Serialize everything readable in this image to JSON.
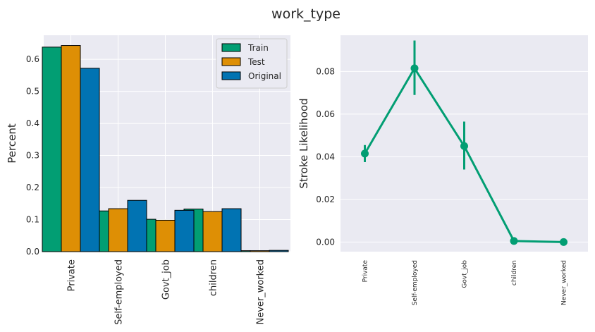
{
  "figure": {
    "title": "work_type"
  },
  "colors": {
    "train": "#029e73",
    "test": "#de8f05",
    "original": "#0173b2",
    "line": "#029e73",
    "panel_bg": "#eaeaf2",
    "grid": "#ffffff"
  },
  "chart_data": [
    {
      "type": "bar",
      "title": "",
      "xlabel": "",
      "ylabel": "Percent",
      "ylim": [
        0,
        0.675
      ],
      "yticks": [
        0.0,
        0.1,
        0.2,
        0.3,
        0.4,
        0.5,
        0.6
      ],
      "ytick_labels": [
        "0.0",
        "0.1",
        "0.2",
        "0.3",
        "0.4",
        "0.5",
        "0.6"
      ],
      "grid": true,
      "legend": "top-right",
      "categories": [
        "Private",
        "Self-employed",
        "Govt_job",
        "children",
        "Never_worked"
      ],
      "series": [
        {
          "name": "Train",
          "values": [
            0.638,
            0.127,
            0.101,
            0.133,
            0.003
          ]
        },
        {
          "name": "Test",
          "values": [
            0.643,
            0.134,
            0.098,
            0.125,
            0.003
          ]
        },
        {
          "name": "Original",
          "values": [
            0.572,
            0.16,
            0.129,
            0.134,
            0.004
          ]
        }
      ]
    },
    {
      "type": "line",
      "title": "",
      "xlabel": "",
      "ylabel": "Stroke Likelihood",
      "ylim": [
        -0.0045,
        0.097
      ],
      "yticks": [
        0.0,
        0.02,
        0.04,
        0.06,
        0.08
      ],
      "ytick_labels": [
        "0.00",
        "0.02",
        "0.04",
        "0.06",
        "0.08"
      ],
      "grid": true,
      "categories": [
        "Private",
        "Self-employed",
        "Govt_job",
        "children",
        "Never_worked"
      ],
      "values": [
        0.0415,
        0.0815,
        0.045,
        0.0005,
        0.0
      ],
      "ci_low": [
        0.0375,
        0.069,
        0.034,
        0.0,
        0.0
      ],
      "ci_high": [
        0.0455,
        0.0945,
        0.0565,
        0.001,
        0.0
      ]
    }
  ]
}
